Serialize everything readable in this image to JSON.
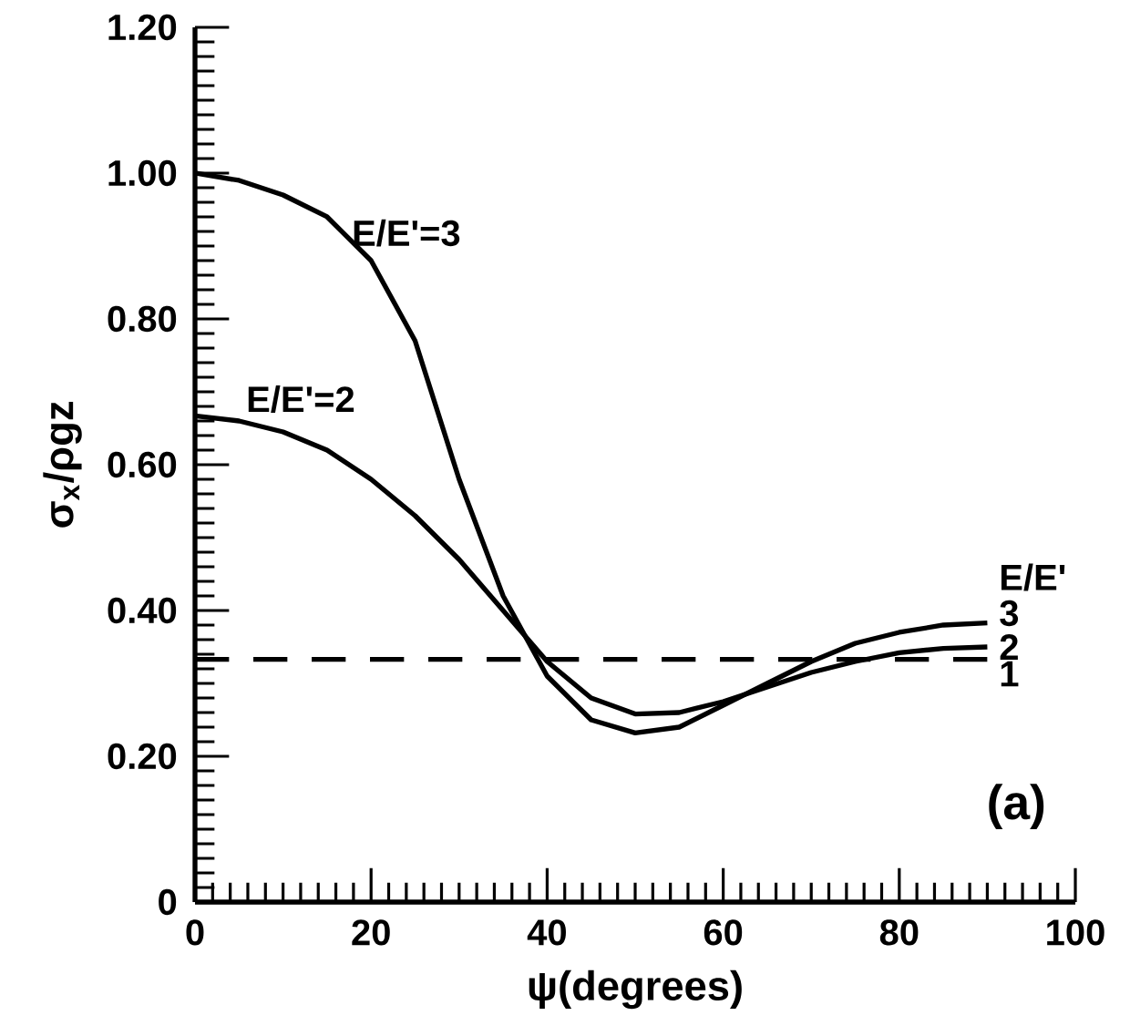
{
  "chart_data": {
    "type": "line",
    "xlabel": "ψ(degrees)",
    "ylabel": "σ$_{x}$/ρgz",
    "legend_title": "E/E'",
    "x": [
      0,
      5,
      10,
      15,
      20,
      25,
      30,
      35,
      40,
      45,
      50,
      55,
      60,
      65,
      70,
      75,
      80,
      85,
      90
    ],
    "xlim": [
      0,
      100
    ],
    "xticks": [
      0,
      20,
      40,
      60,
      80,
      100
    ],
    "ylim": [
      0,
      1.2
    ],
    "yticks": [
      0,
      {
        "value": 0.2,
        "label": "0.20"
      },
      {
        "value": 0.4,
        "label": "0.40"
      },
      {
        "value": 0.6,
        "label": "0.60"
      },
      {
        "value": 0.8,
        "label": "0.80"
      },
      {
        "value": 1.0,
        "label": "1.00"
      },
      {
        "value": 1.2,
        "label": "1.20"
      }
    ],
    "series": [
      {
        "name": "3",
        "color": "#000000",
        "line_style": "solid",
        "values": [
          1.0,
          0.99,
          0.97,
          0.94,
          0.88,
          0.77,
          0.58,
          0.42,
          0.31,
          0.25,
          0.232,
          0.24,
          0.27,
          0.3,
          0.33,
          0.355,
          0.37,
          0.38,
          0.383
        ]
      },
      {
        "name": "2",
        "color": "#000000",
        "line_style": "solid",
        "values": [
          0.667,
          0.66,
          0.645,
          0.62,
          0.58,
          0.53,
          0.47,
          0.4,
          0.33,
          0.28,
          0.258,
          0.26,
          0.275,
          0.295,
          0.315,
          0.33,
          0.342,
          0.348,
          0.35
        ]
      },
      {
        "name": "1",
        "color": "#000000",
        "line_style": "dashed",
        "values": [
          0.333,
          0.333,
          0.333,
          0.333,
          0.333,
          0.333,
          0.333,
          0.333,
          0.333,
          0.333,
          0.333,
          0.333,
          0.333,
          0.333,
          0.333,
          0.333,
          0.333,
          0.333,
          0.333
        ]
      }
    ],
    "annotations": [
      "E/E'=3",
      "E/E'=2",
      "(a)"
    ],
    "grid": false,
    "legend": "right",
    "marker": "none"
  }
}
